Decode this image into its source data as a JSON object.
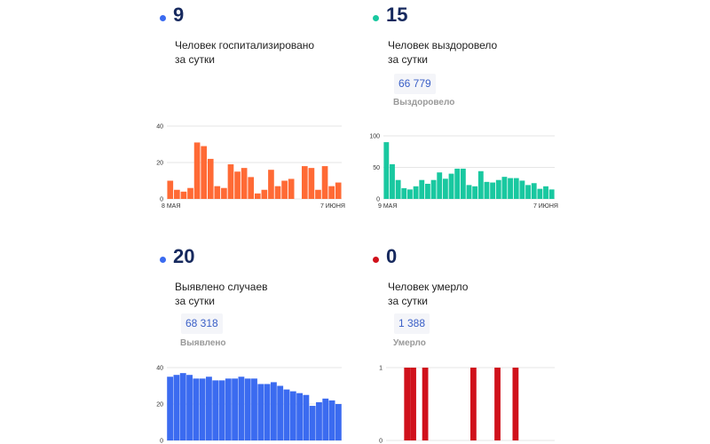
{
  "panels": [
    {
      "number": "9",
      "desc_line1": "Человек госпитализировано",
      "desc_line2": "за сутки",
      "color": "#ff6a35",
      "dot_color": "#3b6bf0"
    },
    {
      "number": "15",
      "desc_line1": "Человек выздоровело",
      "desc_line2": "за сутки",
      "total": "66 779",
      "total_label": "Выздоровело",
      "color": "#19c8a0",
      "dot_color": "#19c8a0"
    },
    {
      "number": "20",
      "desc_line1": "Выявлено случаев",
      "desc_line2": "за сутки",
      "total": "68 318",
      "total_label": "Выявлено",
      "color": "#3b6bf0",
      "dot_color": "#3b6bf0"
    },
    {
      "number": "0",
      "desc_line1": "Человек умерло",
      "desc_line2": "за сутки",
      "total": "1 388",
      "total_label": "Умерло",
      "color": "#d0111b",
      "dot_color": "#d0111b"
    }
  ],
  "chart_data": [
    {
      "type": "bar",
      "ylim": [
        0,
        40
      ],
      "yticks": [
        "40",
        "20",
        "0"
      ],
      "x_start_label": "8 мая",
      "x_end_label": "7 июня",
      "values": [
        10,
        5,
        4,
        6,
        31,
        29,
        22,
        7,
        6,
        19,
        15,
        17,
        12,
        3,
        5,
        16,
        7,
        10,
        11,
        0,
        18,
        17,
        5,
        18,
        7,
        9
      ]
    },
    {
      "type": "bar",
      "ylim": [
        0,
        100
      ],
      "yticks": [
        "100",
        "50",
        "0"
      ],
      "x_start_label": "9 мая",
      "x_end_label": "7 июня",
      "values": [
        90,
        55,
        30,
        17,
        15,
        20,
        30,
        24,
        30,
        42,
        32,
        40,
        48,
        48,
        22,
        20,
        44,
        27,
        26,
        30,
        35,
        33,
        33,
        29,
        22,
        25,
        16,
        20,
        15
      ]
    },
    {
      "type": "bar",
      "ylim": [
        0,
        40
      ],
      "yticks": [
        "40",
        "20",
        "0"
      ],
      "values": [
        35,
        36,
        37,
        36,
        34,
        34,
        35,
        33,
        33,
        34,
        34,
        35,
        34,
        34,
        31,
        31,
        32,
        30,
        28,
        27,
        26,
        25,
        19,
        21,
        23,
        22,
        20
      ]
    },
    {
      "type": "bar",
      "ylim": [
        0,
        1
      ],
      "yticks": [
        "1",
        "0"
      ],
      "values": [
        0,
        0,
        0,
        1,
        1,
        0,
        1,
        0,
        0,
        0,
        0,
        0,
        0,
        0,
        1,
        0,
        0,
        0,
        1,
        0,
        0,
        1,
        0,
        0,
        0,
        0,
        0,
        0
      ]
    }
  ]
}
